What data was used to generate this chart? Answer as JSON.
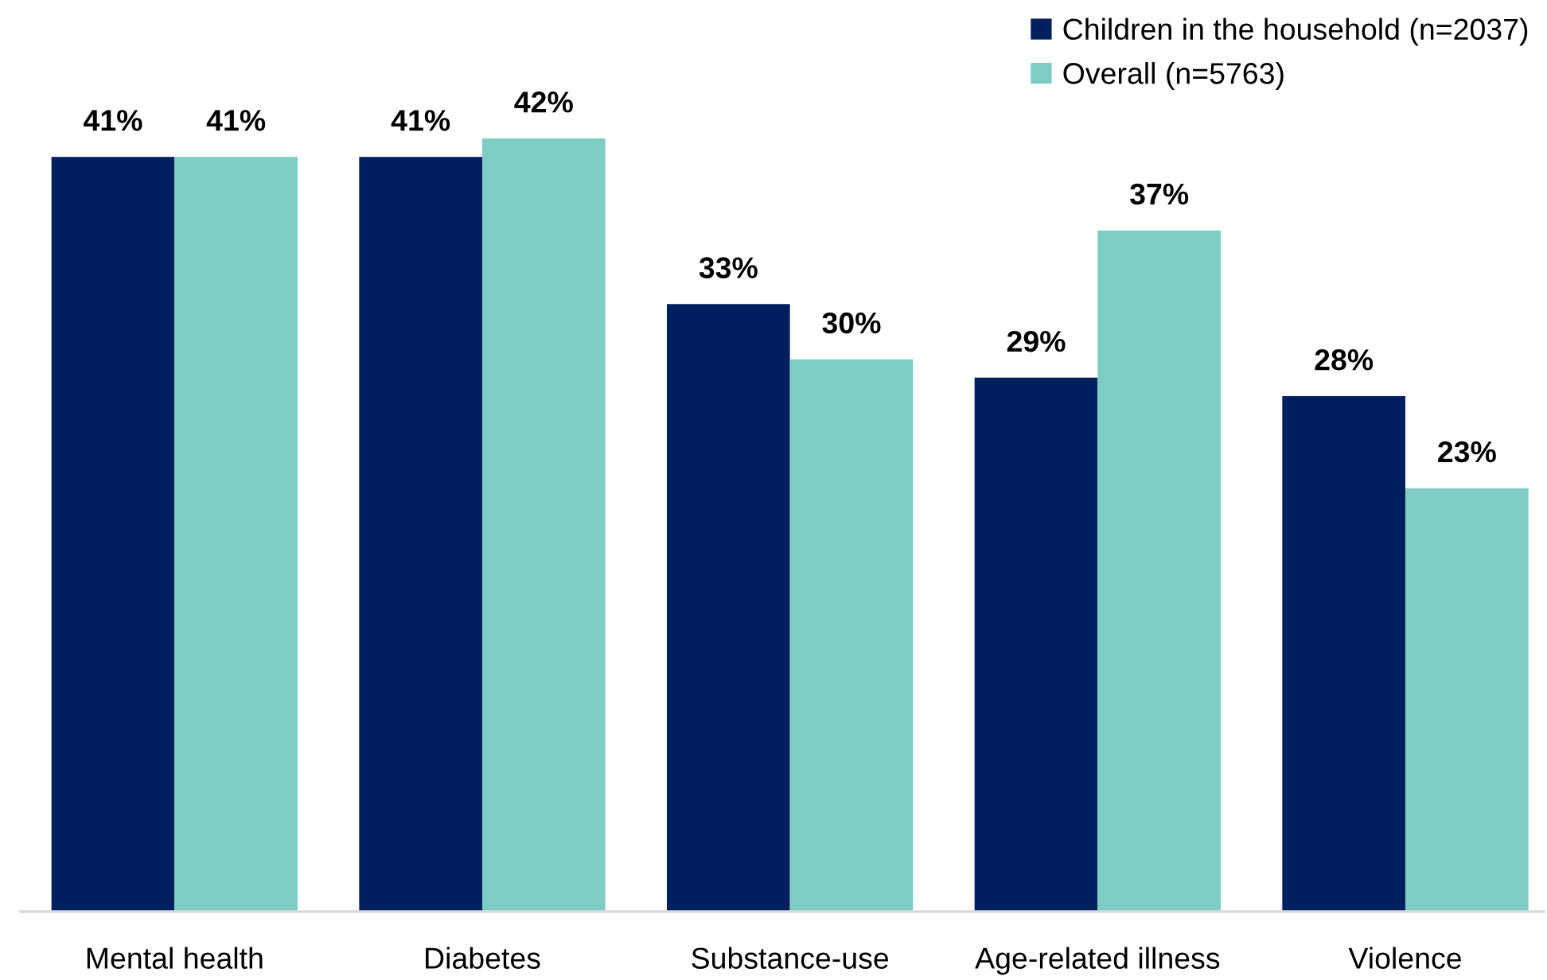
{
  "chart_data": {
    "type": "bar",
    "categories": [
      "Mental health",
      "Diabetes",
      "Substance-use",
      "Age-related illness",
      "Violence"
    ],
    "series": [
      {
        "name": "Children in the household (n=2037)",
        "color": "#001f5f",
        "values": [
          41,
          41,
          33,
          29,
          28
        ],
        "value_labels": [
          "41%",
          "41%",
          "33%",
          "29%",
          "28%"
        ]
      },
      {
        "name": "Overall (n=5763)",
        "color": "#7dcdc5",
        "values": [
          41,
          42,
          30,
          37,
          23
        ],
        "value_labels": [
          "41%",
          "42%",
          "30%",
          "37%",
          "23%"
        ]
      }
    ],
    "legend": "top right"
  }
}
